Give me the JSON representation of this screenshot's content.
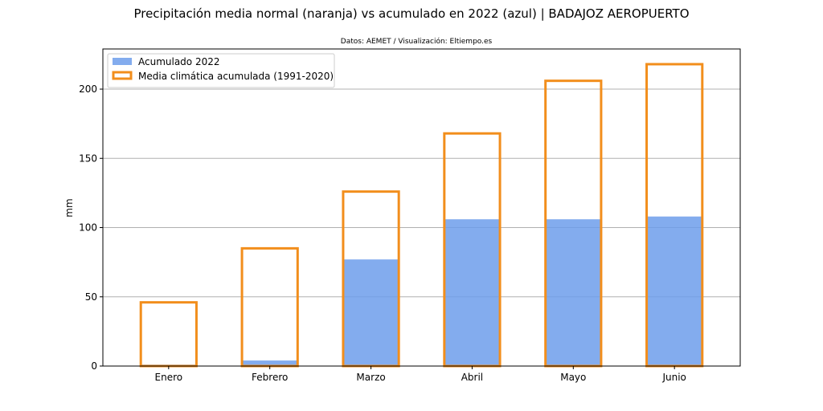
{
  "chart_data": {
    "type": "bar",
    "title": "Precipitación media normal (naranja) vs acumulado en 2022 (azul) | BADAJOZ AEROPUERTO",
    "subtitle": "Datos: AEMET / Visualización: Eltiempo.es",
    "xlabel": "",
    "ylabel": "mm",
    "ylim": [
      0,
      229
    ],
    "yticks": [
      0,
      50,
      100,
      150,
      200
    ],
    "grid": "horizontal",
    "legend_position": "top-left",
    "categories": [
      "Enero",
      "Febrero",
      "Marzo",
      "Abril",
      "Mayo",
      "Junio"
    ],
    "series": [
      {
        "name": "Acumulado 2022",
        "style": "filled",
        "color": "#6d9eeb",
        "values": [
          1,
          4,
          77,
          106,
          106,
          108
        ]
      },
      {
        "name": "Media climática acumulada (1991-2020)",
        "style": "outline",
        "color": "#f28e1c",
        "values": [
          46,
          85,
          126,
          168,
          206,
          218
        ]
      }
    ]
  }
}
